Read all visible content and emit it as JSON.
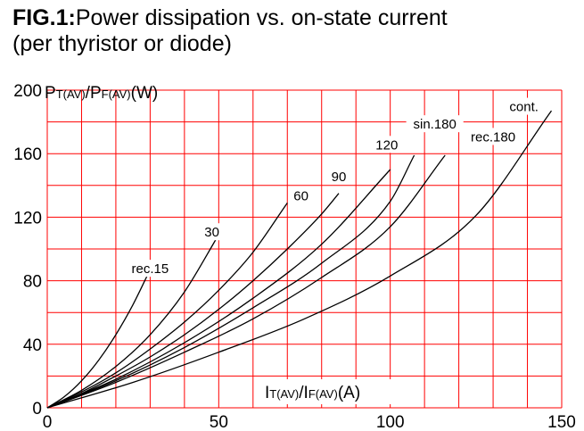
{
  "figure": {
    "fig_label": "FIG.1:",
    "title": "Power dissipation vs. on-state current",
    "subtitle": "(per thyristor or diode)"
  },
  "chart_data": {
    "type": "line",
    "ylabel": {
      "main1": "P",
      "sub1": "T(AV)",
      "sep": "/",
      "main2": "P",
      "sub2": "F(AV)",
      "unit": "(W)"
    },
    "xlabel": {
      "main1": "I",
      "sub1": "T(AV)",
      "sep": "/",
      "main2": "I",
      "sub2": "F(AV)",
      "unit": "(A)"
    },
    "xlim": [
      0,
      150
    ],
    "ylim": [
      0,
      200
    ],
    "x_ticks": [
      0,
      50,
      100,
      150
    ],
    "y_ticks": [
      0,
      40,
      80,
      120,
      160,
      200
    ],
    "x_grid_step": 10,
    "y_grid_step": 20,
    "grid": true,
    "grid_color": "#ff0000",
    "line_color": "#000000",
    "series": [
      {
        "name": "rec.15",
        "x": [
          0,
          5,
          10,
          15,
          20,
          25,
          30
        ],
        "y": [
          0,
          7,
          17,
          30,
          46,
          65,
          87
        ]
      },
      {
        "name": "30",
        "x": [
          0,
          10,
          20,
          30,
          40,
          50
        ],
        "y": [
          0,
          11,
          26,
          46,
          73,
          109
        ]
      },
      {
        "name": "60",
        "x": [
          0,
          10,
          20,
          30,
          40,
          50,
          60,
          70
        ],
        "y": [
          0,
          10,
          22,
          37,
          54,
          74,
          98,
          129
        ]
      },
      {
        "name": "90",
        "x": [
          0,
          10,
          20,
          30,
          40,
          50,
          60,
          70,
          80,
          85
        ],
        "y": [
          0,
          9,
          20,
          32,
          46,
          62,
          80,
          100,
          122,
          135
        ]
      },
      {
        "name": "120",
        "x": [
          0,
          20,
          40,
          60,
          80,
          100
        ],
        "y": [
          0,
          18,
          41,
          69,
          103,
          150
        ]
      },
      {
        "name": "sin.180",
        "x": [
          0,
          20,
          40,
          60,
          80,
          100,
          107
        ],
        "y": [
          0,
          17,
          38,
          63,
          91,
          130,
          159
        ]
      },
      {
        "name": "rec.180",
        "x": [
          0,
          20,
          40,
          60,
          80,
          100,
          116
        ],
        "y": [
          0,
          16,
          35,
          56,
          82,
          114,
          159
        ]
      },
      {
        "name": "cont.",
        "x": [
          0,
          25,
          50,
          75,
          100,
          125,
          147
        ],
        "y": [
          0,
          16,
          35,
          56,
          83,
          121,
          187
        ]
      }
    ],
    "series_labels": [
      {
        "name": "rec.15",
        "at": [
          30,
          87
        ]
      },
      {
        "name": "30",
        "at": [
          48,
          110
        ]
      },
      {
        "name": "60",
        "at": [
          74,
          133
        ]
      },
      {
        "name": "90",
        "at": [
          85,
          145
        ]
      },
      {
        "name": "120",
        "at": [
          99,
          165
        ]
      },
      {
        "name": "sin.180",
        "at": [
          113,
          178
        ]
      },
      {
        "name": "rec.180",
        "at": [
          130,
          170
        ]
      },
      {
        "name": "cont.",
        "at": [
          139,
          189
        ]
      }
    ]
  }
}
